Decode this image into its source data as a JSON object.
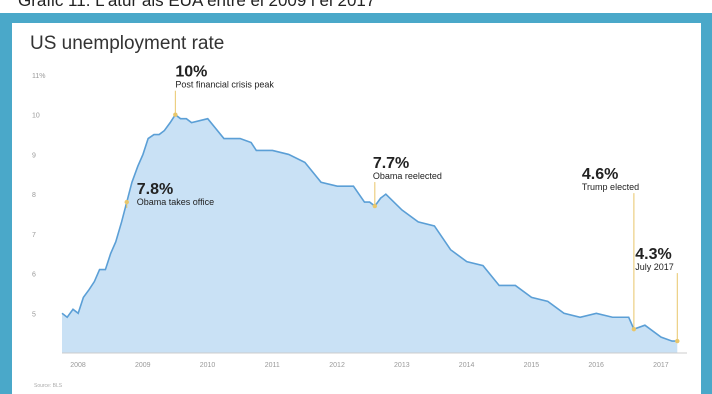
{
  "caption": "Gràfic 11. L'atur als EUA entre el 2009 i el 2017",
  "source": "Source: BLS",
  "chart_data": {
    "type": "area",
    "title": "US unemployment rate",
    "xlabel": "",
    "ylabel": "",
    "x_ticks": [
      "2008",
      "2009",
      "2010",
      "2011",
      "2012",
      "2013",
      "2014",
      "2015",
      "2016",
      "2017"
    ],
    "y_ticks": [
      "11%",
      "10",
      "9",
      "8",
      "7",
      "6",
      "5"
    ],
    "ylim": [
      4,
      11
    ],
    "xlim": [
      2008.0,
      2017.65
    ],
    "grid": false,
    "fill_color": "#c9e1f5",
    "line_color": "#5b9fd6",
    "series": [
      {
        "x": [
          2008.0,
          2008.08,
          2008.17,
          2008.25,
          2008.33,
          2008.42,
          2008.5,
          2008.58,
          2008.67,
          2008.75,
          2008.83,
          2008.92,
          2009.0,
          2009.08,
          2009.17,
          2009.25,
          2009.33,
          2009.42,
          2009.5,
          2009.58,
          2009.67,
          2009.75,
          2009.83,
          2009.92,
          2010.0,
          2010.25,
          2010.5,
          2010.75,
          2010.92,
          2011.0,
          2011.25,
          2011.5,
          2011.75,
          2012.0,
          2012.25,
          2012.5,
          2012.67,
          2012.75,
          2012.83,
          2012.92,
          2013.0,
          2013.25,
          2013.5,
          2013.75,
          2014.0,
          2014.25,
          2014.5,
          2014.75,
          2015.0,
          2015.25,
          2015.5,
          2015.75,
          2016.0,
          2016.25,
          2016.5,
          2016.75,
          2016.83,
          2017.0,
          2017.25,
          2017.42,
          2017.5
        ],
        "values": [
          5.0,
          4.9,
          5.1,
          5.0,
          5.4,
          5.6,
          5.8,
          6.1,
          6.1,
          6.5,
          6.8,
          7.3,
          7.8,
          8.3,
          8.7,
          9.0,
          9.4,
          9.5,
          9.5,
          9.6,
          9.8,
          10.0,
          9.9,
          9.9,
          9.8,
          9.9,
          9.4,
          9.4,
          9.3,
          9.1,
          9.1,
          9.0,
          8.8,
          8.3,
          8.2,
          8.2,
          7.8,
          7.8,
          7.7,
          7.9,
          8.0,
          7.6,
          7.3,
          7.2,
          6.6,
          6.3,
          6.2,
          5.7,
          5.7,
          5.4,
          5.3,
          5.0,
          4.9,
          5.0,
          4.9,
          4.9,
          4.6,
          4.7,
          4.4,
          4.3,
          4.3
        ]
      }
    ],
    "annotations": [
      {
        "value_label": "10%",
        "text": "Post financial crisis peak",
        "x": 2009.75,
        "y": 10.0
      },
      {
        "value_label": "7.8%",
        "text": "Obama takes office",
        "x": 2009.0,
        "y": 7.8
      },
      {
        "value_label": "7.7%",
        "text": "Obama reelected",
        "x": 2012.83,
        "y": 7.7
      },
      {
        "value_label": "4.6%",
        "text": "Trump elected",
        "x": 2016.83,
        "y": 4.6
      },
      {
        "value_label": "4.3%",
        "text": "July 2017",
        "x": 2017.5,
        "y": 4.3
      }
    ]
  }
}
